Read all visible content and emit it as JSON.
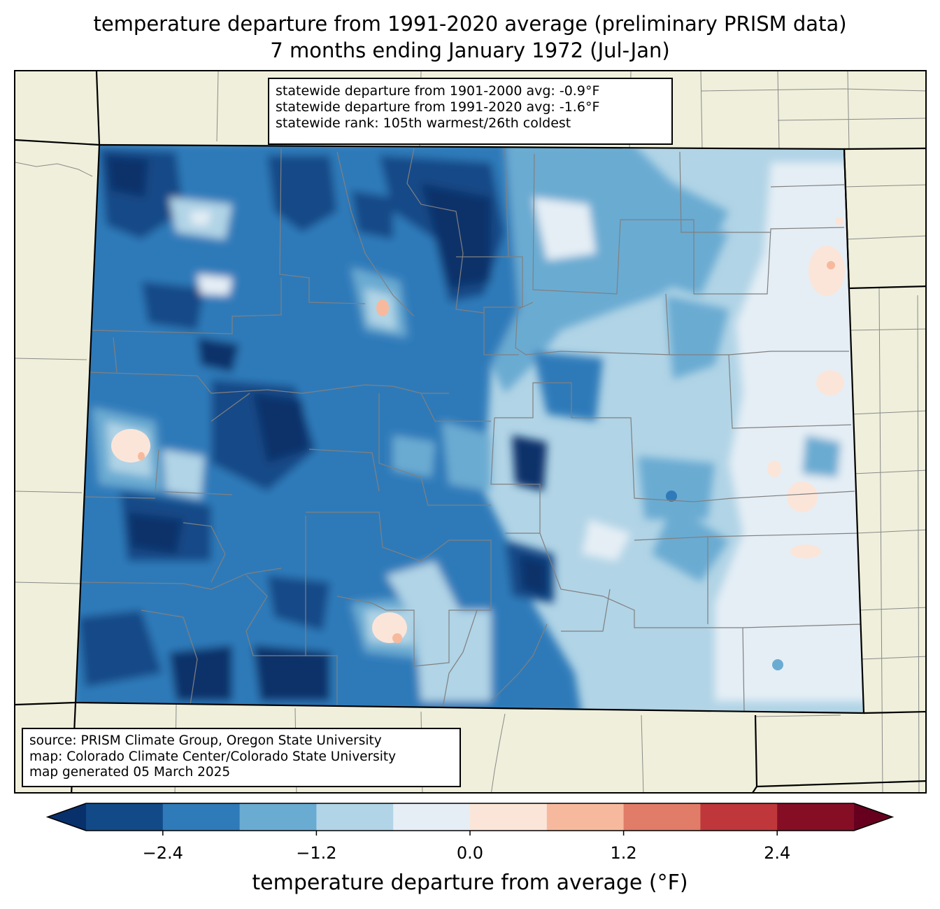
{
  "title": {
    "line1": "temperature departure from 1991-2020 average (preliminary PRISM data)",
    "line2": "7 months ending January 1972 (Jul-Jan)"
  },
  "stats": {
    "line1": "statewide departure from 1901-2000 avg: -0.9°F",
    "line2": "statewide departure from 1991-2020 avg: -1.6°F",
    "line3": "statewide rank: 105th warmest/26th coldest"
  },
  "source": {
    "line1": "source: PRISM Climate Group, Oregon State University",
    "line2": "map: Colorado Climate Center/Colorado State University",
    "line3": "map generated 05 March 2025"
  },
  "colorbar": {
    "label": "temperature departure from average (°F)",
    "ticks": [
      "−2.4",
      "−1.2",
      "0.0",
      "1.2",
      "2.4"
    ],
    "tick_values": [
      -2.4,
      -1.2,
      0.0,
      1.2,
      2.4
    ],
    "range": [
      -3.0,
      3.0
    ],
    "extend": "both",
    "colors": [
      "#08306b",
      "#124a87",
      "#2f7ab9",
      "#6aabd2",
      "#b1d4e6",
      "#e5eef5",
      "#fbe5d9",
      "#f7b99d",
      "#e07c68",
      "#bf373b",
      "#850e25",
      "#67001f"
    ],
    "levels": [
      -3.0,
      -2.4,
      -1.8,
      -1.2,
      -0.6,
      0.0,
      0.6,
      1.2,
      1.8,
      2.4,
      3.0
    ]
  },
  "map_colors": {
    "land": "#efefdb",
    "county_lines": "#808080",
    "state_lines": "#000000"
  }
}
